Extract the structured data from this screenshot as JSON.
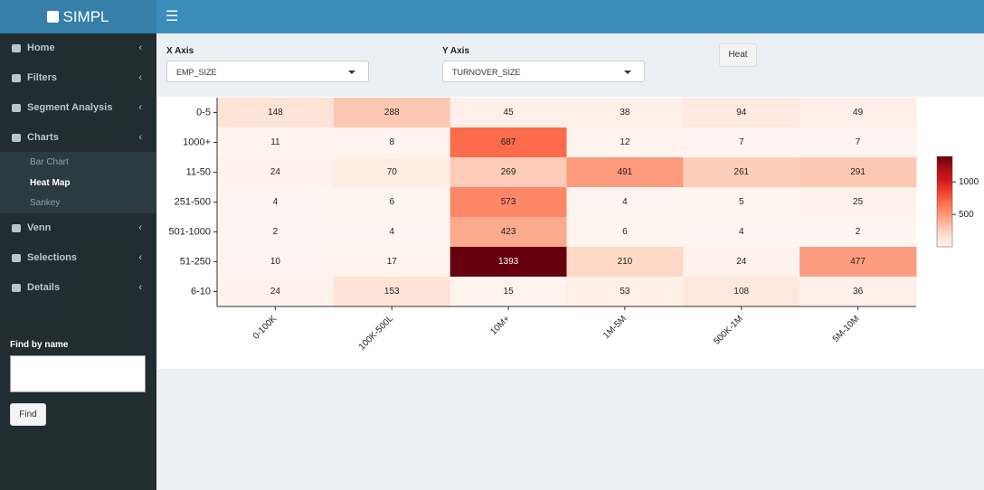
{
  "app": {
    "logo": "SIMPL"
  },
  "sidebar": {
    "items": [
      "Home",
      "Filters",
      "Segment Analysis",
      "Charts"
    ],
    "subitems": [
      "Bar Chart",
      "Heat Map",
      "Sankey"
    ],
    "items_after": [
      "Venn",
      "Selections",
      "Details"
    ],
    "find_label": "Find by name",
    "find_button": "Find"
  },
  "controls": {
    "x_label": "X Axis",
    "x_value": "EMP_SIZE",
    "y_label": "Y Axis",
    "y_value": "TURNOVER_SIZE",
    "button": "Heat"
  },
  "chart_data": {
    "type": "heatmap",
    "rows": [
      "0-5",
      "1000+",
      "11-50",
      "251-500",
      "501-1000",
      "51-250",
      "6-10"
    ],
    "columns": [
      "0-100K",
      "100K-500L",
      "10M+",
      "1M-5M",
      "500K-1M",
      "5M-10M"
    ],
    "values": [
      [
        148,
        288,
        45,
        38,
        94,
        49
      ],
      [
        11,
        8,
        687,
        12,
        7,
        7
      ],
      [
        24,
        70,
        269,
        491,
        261,
        291
      ],
      [
        4,
        6,
        573,
        4,
        5,
        25
      ],
      [
        2,
        4,
        423,
        6,
        4,
        2
      ],
      [
        10,
        17,
        1393,
        210,
        24,
        477
      ],
      [
        24,
        153,
        15,
        53,
        108,
        36
      ]
    ],
    "colormap": [
      "#fff5f0",
      "#fee0d2",
      "#fcbba1",
      "#fc9272",
      "#fb6a4a",
      "#ef3b2c",
      "#cb181d",
      "#a50f15",
      "#67000d"
    ],
    "zlim": [
      2,
      1393
    ],
    "zticks": [
      500,
      1000
    ]
  }
}
